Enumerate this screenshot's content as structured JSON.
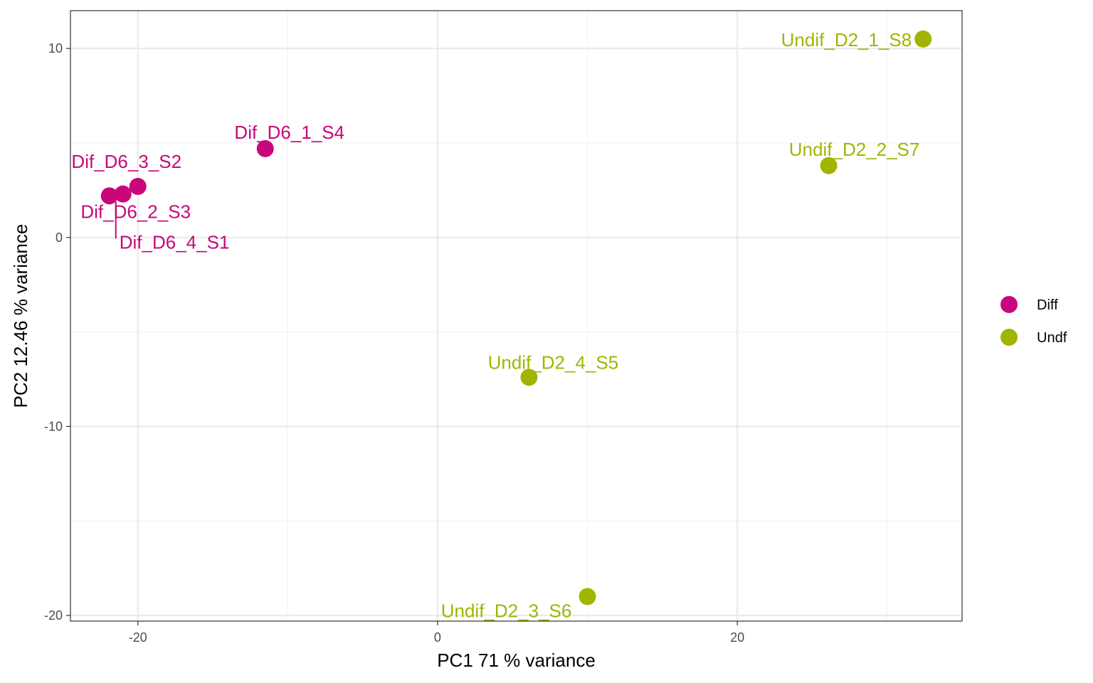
{
  "chart_data": {
    "type": "scatter",
    "xlabel": "PC1 71 % variance",
    "ylabel": "PC2 12.46 % variance",
    "xlim": [
      -24.5,
      35
    ],
    "ylim": [
      -20.3,
      12
    ],
    "x_ticks": [
      -20,
      0,
      20
    ],
    "y_ticks": [
      10,
      0,
      -10,
      -20
    ],
    "x_tick_labels": [
      "-20",
      "0",
      "20"
    ],
    "y_tick_labels": [
      "10",
      "0",
      "-10",
      "-20"
    ],
    "grid": true,
    "legend_position": "right",
    "colors": {
      "Diff": "#c8077a",
      "Undf": "#a1b500"
    },
    "legend": [
      {
        "name": "Diff",
        "color": "#c8077a"
      },
      {
        "name": "Undf",
        "color": "#a1b500"
      }
    ],
    "points": [
      {
        "label": "Dif_D6_1_S4",
        "group": "Diff",
        "x": -11.5,
        "y": 4.7
      },
      {
        "label": "Dif_D6_3_S2",
        "group": "Diff",
        "x": -20.0,
        "y": 2.7
      },
      {
        "label": "Dif_D6_2_S3",
        "group": "Diff",
        "x": -21.0,
        "y": 2.3
      },
      {
        "label": "Dif_D6_4_S1",
        "group": "Diff",
        "x": -21.9,
        "y": 2.2
      },
      {
        "label": "Undif_D2_1_S8",
        "group": "Undf",
        "x": 32.4,
        "y": 10.5
      },
      {
        "label": "Undif_D2_2_S7",
        "group": "Undf",
        "x": 26.1,
        "y": 3.8
      },
      {
        "label": "Undif_D2_4_S5",
        "group": "Undf",
        "x": 6.1,
        "y": -7.4
      },
      {
        "label": "Undif_D2_3_S6",
        "group": "Undf",
        "x": 10.0,
        "y": -19.0
      }
    ]
  }
}
